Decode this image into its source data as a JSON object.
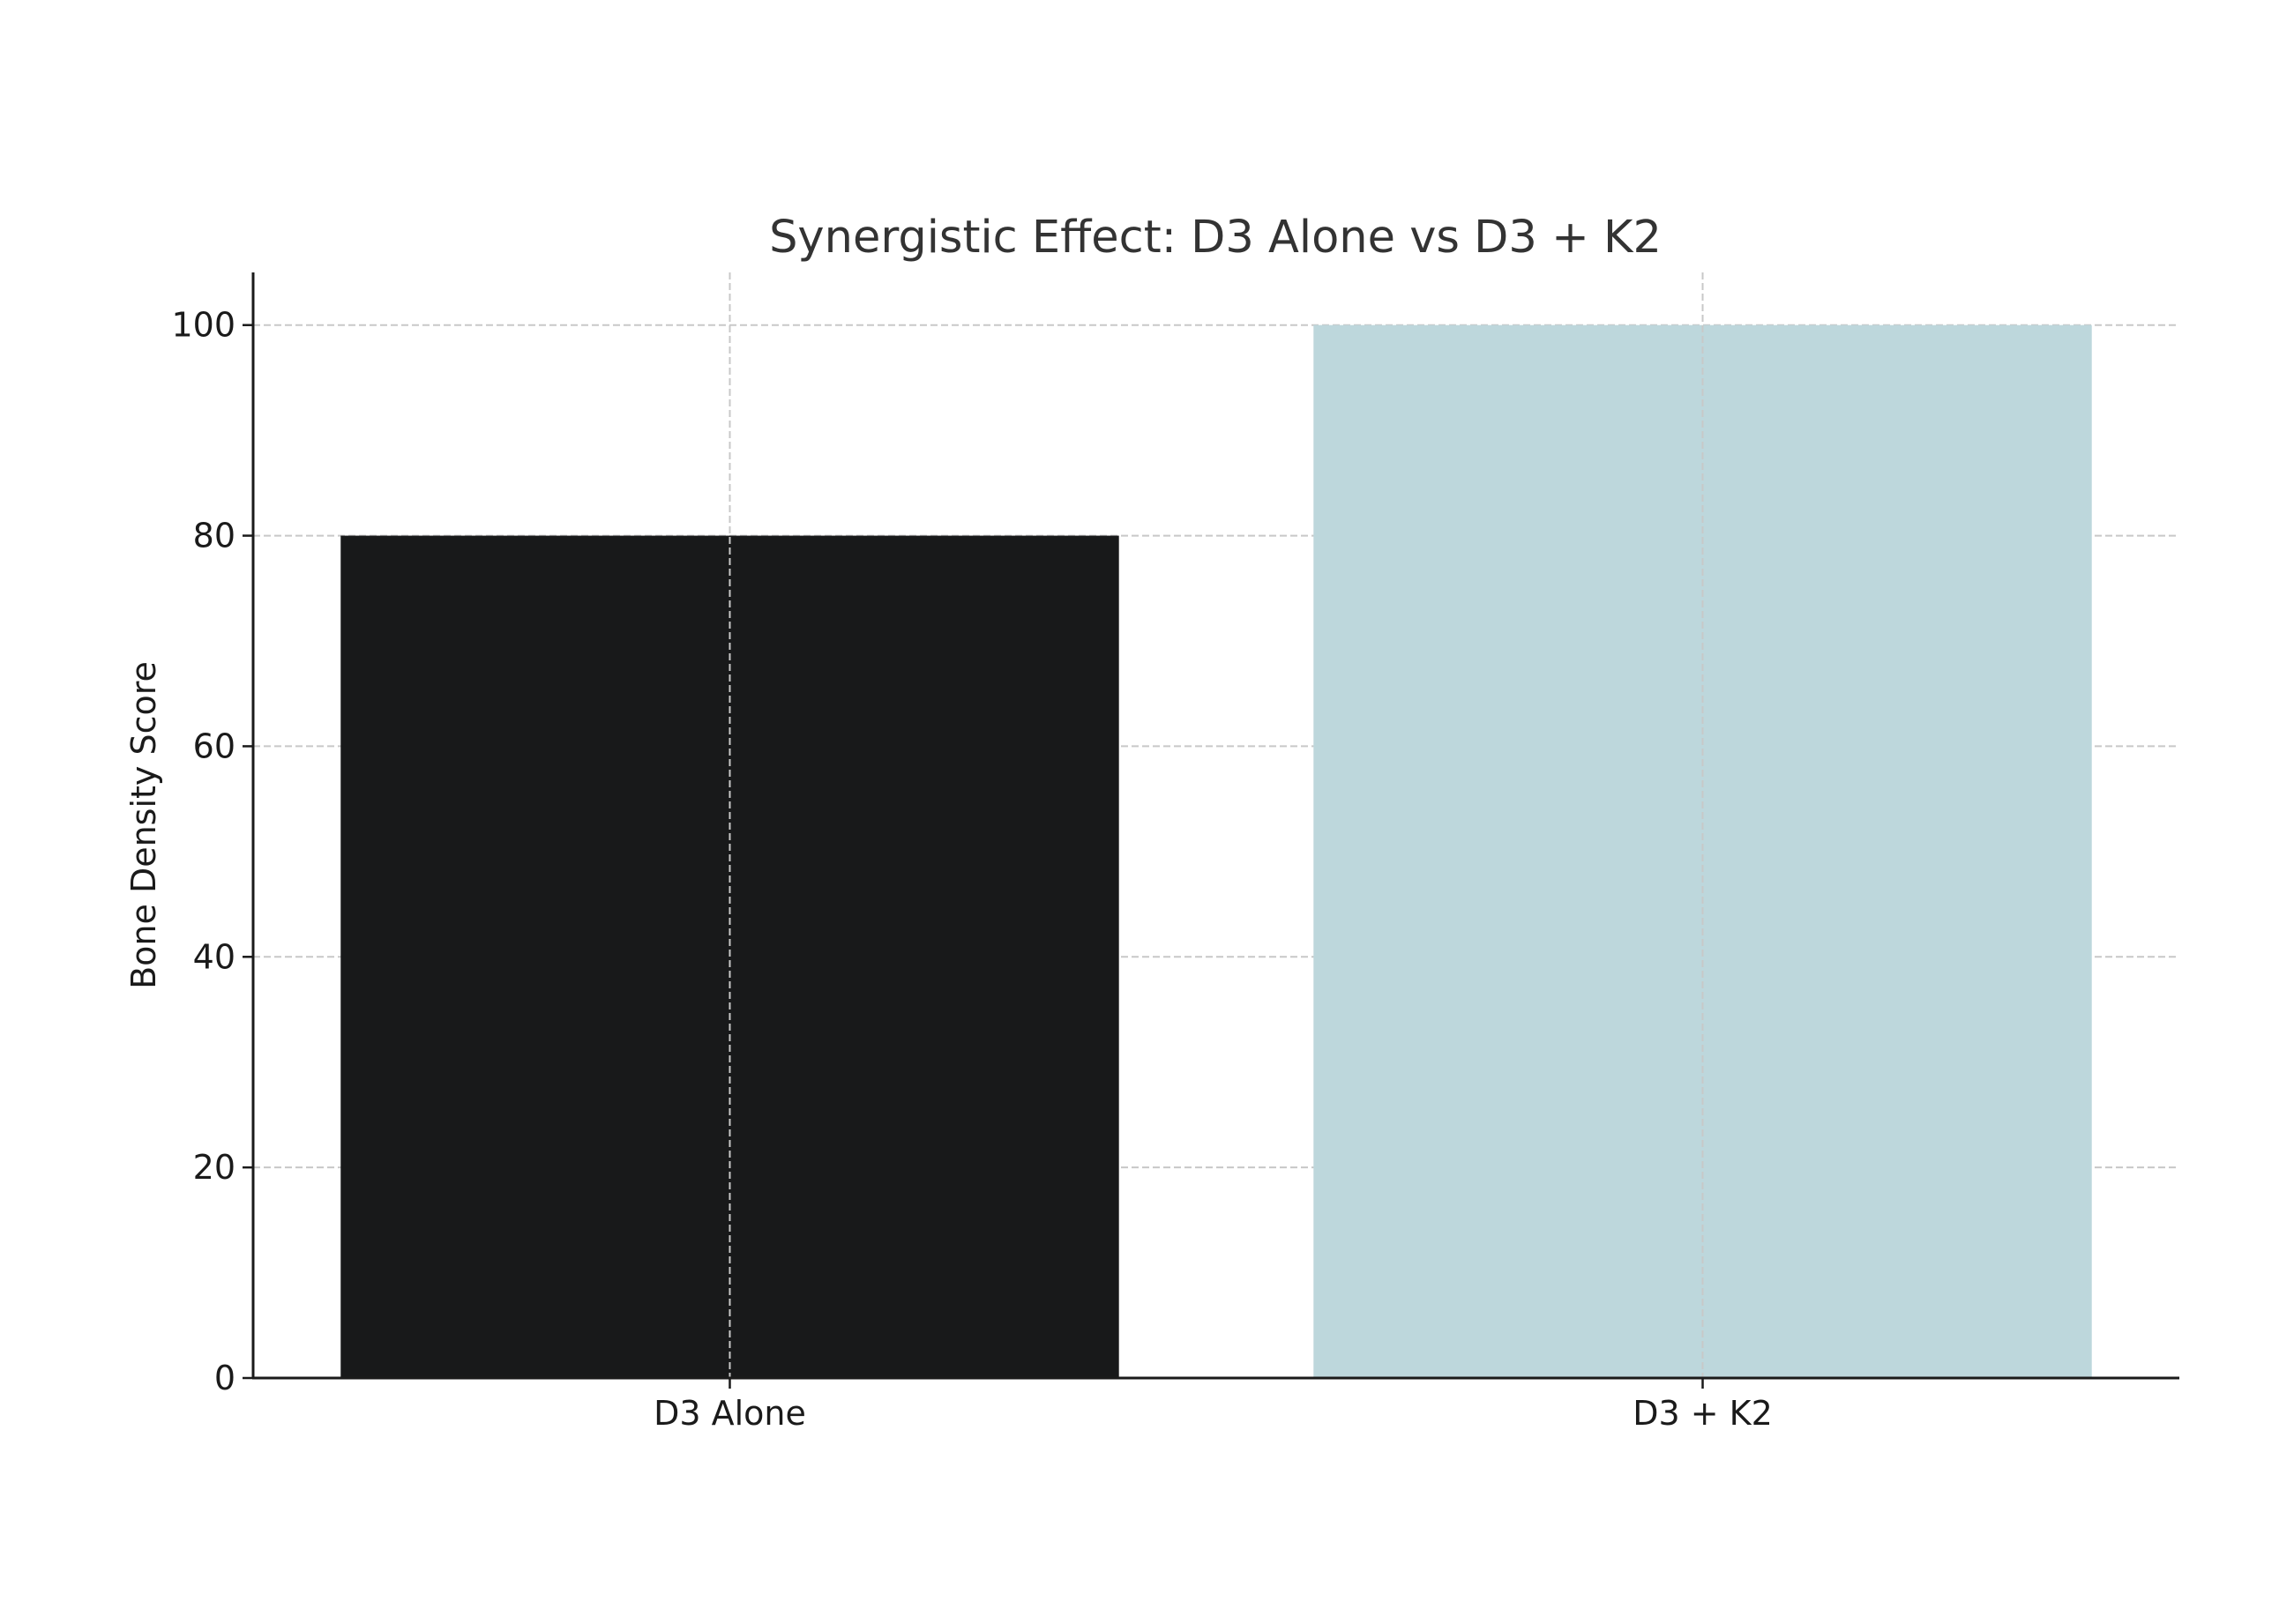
{
  "chart_data": {
    "type": "bar",
    "title": "Synergistic Effect: D3 Alone vs D3 + K2",
    "xlabel": "",
    "ylabel": "Bone Density Score",
    "categories": [
      "D3 Alone",
      "D3 + K2"
    ],
    "values": [
      80,
      100
    ],
    "colors": [
      "#18191a",
      "#bdd7dc"
    ],
    "ylim": [
      0,
      105
    ],
    "yticks": [
      0,
      20,
      40,
      60,
      80,
      100
    ],
    "grid": true
  }
}
